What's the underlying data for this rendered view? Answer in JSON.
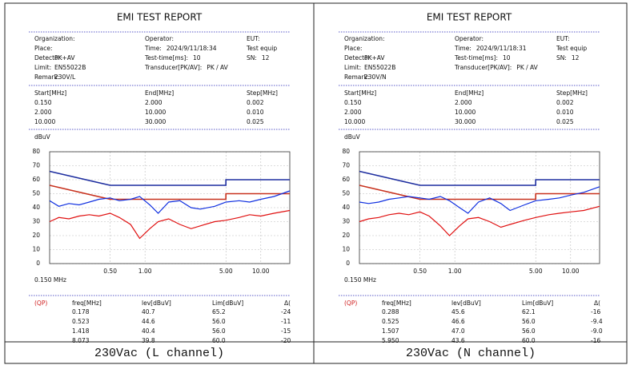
{
  "chart_data": [
    {
      "type": "line",
      "y_label": "dBuV",
      "xlim": [
        0.15,
        17.8
      ],
      "ylim": [
        0,
        80
      ],
      "log_x": true,
      "grid": true,
      "xticks": [
        {
          "value": 0.5,
          "label": "0.50"
        },
        {
          "value": 1,
          "label": "1.00"
        },
        {
          "value": 5,
          "label": "5.00"
        },
        {
          "value": 10,
          "label": "10.00"
        }
      ],
      "yticks": [
        0,
        10,
        20,
        30,
        40,
        50,
        60,
        70,
        80
      ],
      "series": [
        {
          "color": "#1f2fa0",
          "x": [
            0.15,
            0.5,
            5,
            5,
            17.8
          ],
          "values": [
            66,
            56,
            56,
            60,
            60
          ]
        },
        {
          "color": "#c8321e",
          "x": [
            0.15,
            0.5,
            5,
            5,
            17.8
          ],
          "values": [
            56,
            46,
            46,
            50,
            50
          ]
        },
        {
          "color": "#1030e0",
          "x": [
            0.15,
            0.18,
            0.22,
            0.27,
            0.33,
            0.4,
            0.5,
            0.6,
            0.75,
            0.9,
            1.1,
            1.3,
            1.6,
            2.0,
            2.5,
            3.0,
            4.0,
            5.0,
            6.5,
            8.0,
            10,
            13,
            17.8
          ],
          "values": [
            45,
            41,
            43,
            42,
            44,
            46,
            47,
            45,
            46,
            48,
            42,
            36,
            44,
            45,
            40,
            39,
            41,
            44,
            45,
            44,
            46,
            48,
            52
          ]
        },
        {
          "color": "#e01010",
          "x": [
            0.15,
            0.18,
            0.22,
            0.27,
            0.33,
            0.4,
            0.5,
            0.6,
            0.75,
            0.9,
            1.1,
            1.3,
            1.6,
            2.0,
            2.5,
            3.0,
            4.0,
            5.0,
            6.5,
            8.0,
            10,
            13,
            17.8
          ],
          "values": [
            30,
            33,
            32,
            34,
            35,
            34,
            36,
            33,
            28,
            18,
            25,
            30,
            32,
            28,
            25,
            27,
            30,
            31,
            33,
            35,
            34,
            36,
            38
          ]
        }
      ]
    },
    {
      "type": "line",
      "y_label": "dBuV",
      "xlim": [
        0.15,
        17.8
      ],
      "ylim": [
        0,
        80
      ],
      "log_x": true,
      "grid": true,
      "xticks": [
        {
          "value": 0.5,
          "label": "0.50"
        },
        {
          "value": 1,
          "label": "1.00"
        },
        {
          "value": 5,
          "label": "5.00"
        },
        {
          "value": 10,
          "label": "10.00"
        }
      ],
      "yticks": [
        0,
        10,
        20,
        30,
        40,
        50,
        60,
        70,
        80
      ],
      "series": [
        {
          "color": "#1f2fa0",
          "x": [
            0.15,
            0.5,
            5,
            5,
            17.8
          ],
          "values": [
            66,
            56,
            56,
            60,
            60
          ]
        },
        {
          "color": "#c8321e",
          "x": [
            0.15,
            0.5,
            5,
            5,
            17.8
          ],
          "values": [
            56,
            46,
            46,
            50,
            50
          ]
        },
        {
          "color": "#1030e0",
          "x": [
            0.15,
            0.18,
            0.22,
            0.27,
            0.33,
            0.4,
            0.5,
            0.6,
            0.75,
            0.9,
            1.1,
            1.3,
            1.6,
            2.0,
            2.5,
            3.0,
            4.0,
            5.0,
            6.5,
            8.0,
            10,
            13,
            17.8
          ],
          "values": [
            44,
            43,
            44,
            46,
            47,
            48,
            47,
            46,
            48,
            45,
            40,
            36,
            44,
            47,
            43,
            38,
            42,
            45,
            46,
            47,
            49,
            51,
            55
          ]
        },
        {
          "color": "#e01010",
          "x": [
            0.15,
            0.18,
            0.22,
            0.27,
            0.33,
            0.4,
            0.5,
            0.6,
            0.75,
            0.9,
            1.1,
            1.3,
            1.6,
            2.0,
            2.5,
            3.0,
            4.0,
            5.0,
            6.5,
            8.0,
            10,
            13,
            17.8
          ],
          "values": [
            30,
            32,
            33,
            35,
            36,
            35,
            37,
            34,
            27,
            20,
            27,
            32,
            33,
            30,
            26,
            28,
            31,
            33,
            35,
            36,
            37,
            38,
            41
          ]
        }
      ]
    }
  ],
  "reports": [
    {
      "title": "EMI TEST REPORT",
      "info": [
        [
          {
            "label": "Organization:"
          },
          {
            "label": "Operator:"
          },
          {
            "label": "EUT:"
          }
        ],
        [
          {
            "label": "Place:"
          },
          {
            "label": "Time:",
            "value": "2024/9/11/18:34"
          },
          {
            "label": "Test equip"
          }
        ],
        [
          {
            "label": "Detector:",
            "value": "PK+AV"
          },
          {
            "label": "Test-time[ms]:",
            "value": "10"
          },
          {
            "label": "SN:",
            "value": "12"
          }
        ],
        [
          {
            "label": "Limit:",
            "value": "EN55022B"
          },
          {
            "label": "Transducer[PK/AV]:",
            "value": "PK / AV"
          }
        ],
        [
          {
            "label": "Remark:",
            "value": "230V/L"
          }
        ]
      ],
      "ranges": {
        "header": [
          "Start[MHz]",
          "End[MHz]",
          "Step[MHz]"
        ],
        "rows": [
          [
            "0.150",
            "2.000",
            "0.002"
          ],
          [
            "2.000",
            "10.000",
            "0.010"
          ],
          [
            "10.000",
            "30.000",
            "0.025"
          ]
        ]
      },
      "axis_note": "0.150 MHz",
      "results": {
        "tag": "(QP)",
        "header": [
          "freq[MHz]",
          "lev[dBuV]",
          "Lim[dBuV]",
          "Δ("
        ],
        "rows": [
          [
            "0.178",
            "40.7",
            "65.2",
            "-24"
          ],
          [
            "0.523",
            "44.6",
            "56.0",
            "-11"
          ],
          [
            "1.418",
            "40.4",
            "56.0",
            "-15"
          ],
          [
            "8.073",
            "39.8",
            "60.0",
            "-20"
          ]
        ]
      },
      "caption": "230Vac (L channel)"
    },
    {
      "title": "EMI TEST REPORT",
      "info": [
        [
          {
            "label": "Organization:"
          },
          {
            "label": "Operator:"
          },
          {
            "label": "EUT:"
          }
        ],
        [
          {
            "label": "Place:"
          },
          {
            "label": "Time:",
            "value": "2024/9/11/18:31"
          },
          {
            "label": "Test equip"
          }
        ],
        [
          {
            "label": "Detector:",
            "value": "PK+AV"
          },
          {
            "label": "Test-time[ms]:",
            "value": "10"
          },
          {
            "label": "SN:",
            "value": "12"
          }
        ],
        [
          {
            "label": "Limit:",
            "value": "EN55022B"
          },
          {
            "label": "Transducer[PK/AV]:",
            "value": "PK / AV"
          }
        ],
        [
          {
            "label": "Remark:",
            "value": "230V/N"
          }
        ]
      ],
      "ranges": {
        "header": [
          "Start[MHz]",
          "End[MHz]",
          "Step[MHz]"
        ],
        "rows": [
          [
            "0.150",
            "2.000",
            "0.002"
          ],
          [
            "2.000",
            "10.000",
            "0.010"
          ],
          [
            "10.000",
            "30.000",
            "0.025"
          ]
        ]
      },
      "axis_note": "0.150 MHz",
      "results": {
        "tag": "(QP)",
        "header": [
          "freq[MHz]",
          "lev[dBuV]",
          "Lim[dBuV]",
          "Δ("
        ],
        "rows": [
          [
            "0.288",
            "45.6",
            "62.1",
            "-16"
          ],
          [
            "0.525",
            "46.6",
            "56.0",
            "-9.4"
          ],
          [
            "1.507",
            "47.0",
            "56.0",
            "-9.0"
          ],
          [
            "5.950",
            "43.6",
            "60.0",
            "-16"
          ]
        ]
      },
      "caption": "230Vac (N channel)"
    }
  ]
}
